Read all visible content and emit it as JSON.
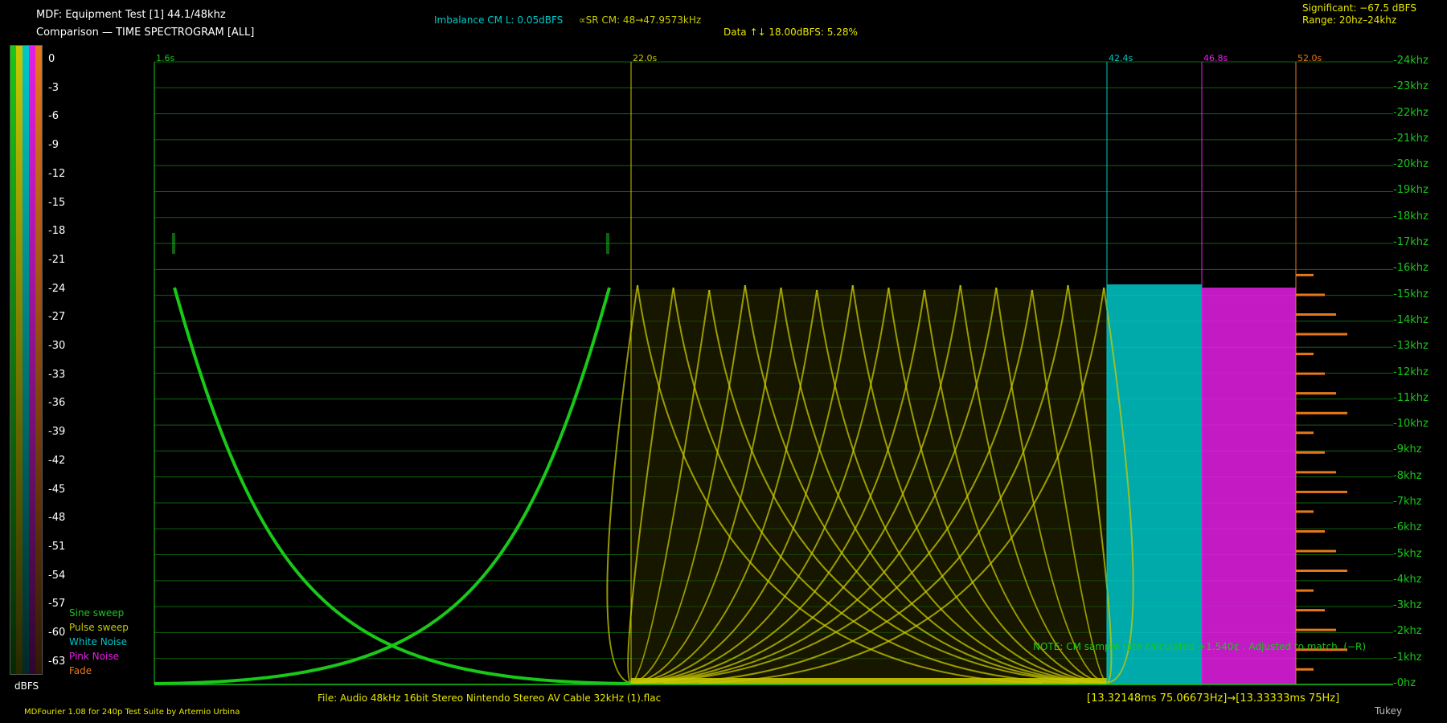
{
  "header": {
    "title": "MDF: Equipment Test [1] 44.1/48khz",
    "subtitle": "Comparison — TIME SPECTROGRAM [ALL]",
    "imbalance": "Imbalance CM L: 0.05dBFS",
    "sample_rate": "∝SR CM: 48→47.9573kHz",
    "data_diff": "Data ↑↓ 18.00dBFS: 5.28%",
    "significant": "Significant: −67.5 dBFS",
    "range": "Range: 20hz–24khz"
  },
  "colors": {
    "sine": "#19c819",
    "pulse": "#c8c800",
    "white_noise": "#00c8c8",
    "pink_noise": "#e61ee6",
    "fade": "#e67819",
    "grid": "#0f640f"
  },
  "scale": {
    "unit_label": "dBFS",
    "values": [
      "0",
      "-3",
      "-6",
      "-9",
      "-12",
      "-15",
      "-18",
      "-21",
      "-24",
      "-27",
      "-30",
      "-33",
      "-36",
      "-39",
      "-42",
      "-45",
      "-48",
      "-51",
      "-54",
      "-57",
      "-60",
      "-63"
    ]
  },
  "legend": [
    {
      "label": "Sine sweep",
      "color": "#19c819"
    },
    {
      "label": "Pulse sweep",
      "color": "#c8c800"
    },
    {
      "label": "White Noise",
      "color": "#00c8c8"
    },
    {
      "label": "Pink Noise",
      "color": "#e61ee6"
    },
    {
      "label": "Fade",
      "color": "#e67819"
    }
  ],
  "time_markers": [
    {
      "label": "1.6s",
      "color": "#19c819"
    },
    {
      "label": "22.0s",
      "color": "#c8c800"
    },
    {
      "label": "42.4s",
      "color": "#00c8c8"
    },
    {
      "label": "46.8s",
      "color": "#e61ee6"
    },
    {
      "label": "52.0s",
      "color": "#e67819"
    }
  ],
  "frequency_labels": [
    "24khz",
    "23khz",
    "22khz",
    "21khz",
    "20khz",
    "19khz",
    "18khz",
    "17khz",
    "16khz",
    "15khz",
    "14khz",
    "13khz",
    "12khz",
    "11khz",
    "10khz",
    "9khz",
    "8khz",
    "7khz",
    "6khz",
    "5khz",
    "4khz",
    "3khz",
    "2khz",
    "1khz",
    "0hz"
  ],
  "note": "NOTE: CM sample rate calculated +1.540¢ . Adjusted to match. (−R)",
  "footer": {
    "file": "File: Audio    48kHz 16bit Stereo Nintendo Stereo AV Cable 32kHz (1).flac",
    "timing": "[13.32148ms 75.06673Hz]→[13.33333ms 75Hz]",
    "credit": "MDFourier 1.08 for 240p Test Suite by Artemio Urbina",
    "window": "Tukey"
  }
}
